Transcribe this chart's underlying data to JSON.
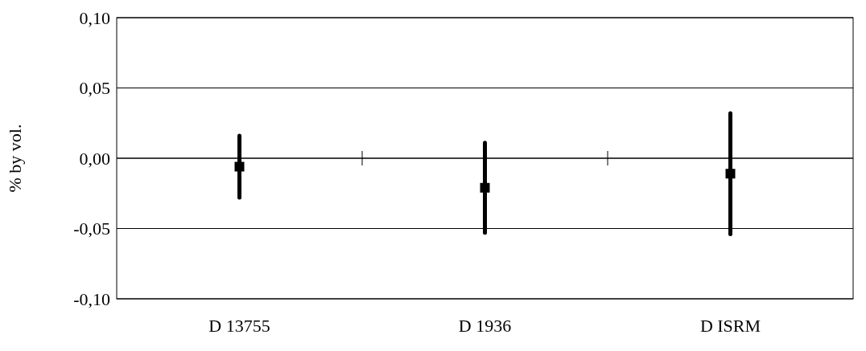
{
  "chart_data": {
    "type": "scatter",
    "ylabel": "% by vol.",
    "categories": [
      "D 13755",
      "D 1936",
      "D ISRM"
    ],
    "series": [
      {
        "color": "#000000",
        "values": [
          -0.006,
          -0.021,
          -0.011
        ],
        "errors": [
          0.022,
          0.032,
          0.043
        ]
      }
    ],
    "ylim": [
      -0.1,
      0.1
    ],
    "yticks": [
      {
        "value": -0.1,
        "label": "-0,10"
      },
      {
        "value": -0.05,
        "label": "-0,05"
      },
      {
        "value": 0,
        "label": "0,00"
      },
      {
        "value": 0.05,
        "label": "0,05"
      },
      {
        "value": 0.1,
        "label": "0,10"
      }
    ],
    "grid": "y",
    "marker": "square"
  }
}
